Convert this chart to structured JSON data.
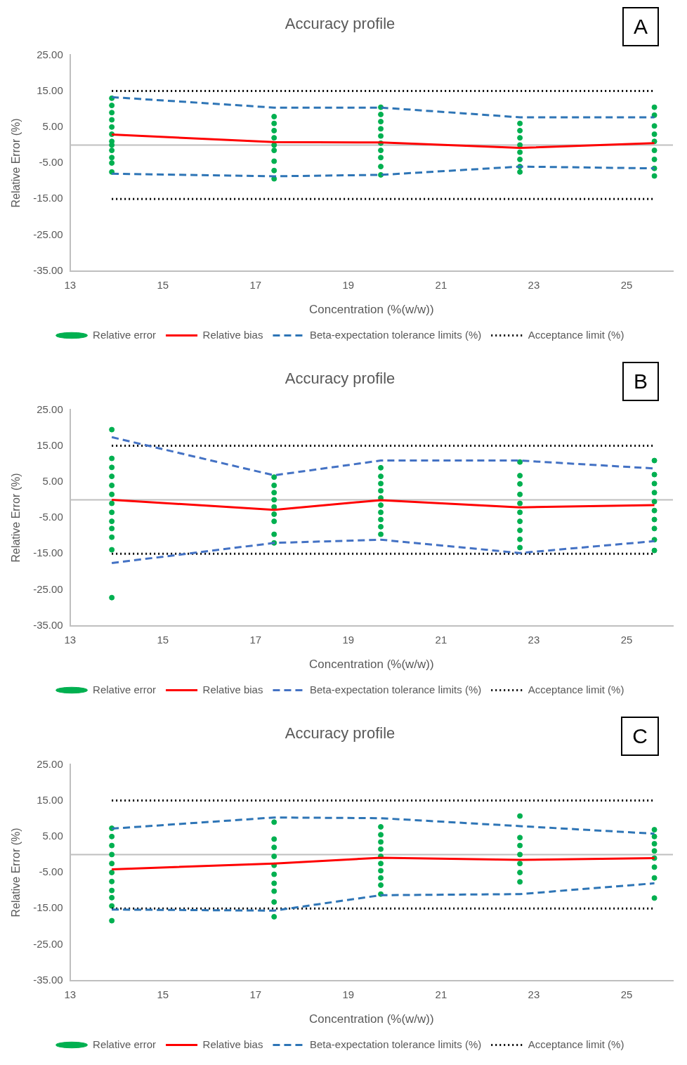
{
  "chart_data": [
    {
      "type": "scatter",
      "title": "Accuracy profile",
      "xlabel": "Concentration (%(w/w))",
      "ylabel": "Relative Error (%)",
      "annotations": [
        "A"
      ],
      "xlim": [
        13,
        26
      ],
      "xticks": [
        13,
        15,
        17,
        19,
        21,
        23,
        25
      ],
      "ylim": [
        -35,
        25
      ],
      "yticks": [
        {
          "value": -35,
          "label": "-35.00"
        },
        {
          "value": -25,
          "label": "-25.00"
        },
        {
          "value": -15,
          "label": "-15.00"
        },
        {
          "value": -5,
          "label": "-5.00"
        },
        {
          "value": 5,
          "label": "5.00"
        },
        {
          "value": 15,
          "label": "15.00"
        },
        {
          "value": 25,
          "label": "25.00"
        }
      ],
      "grid": false,
      "legend": "bottom",
      "ref_lines": [
        {
          "axis": "y",
          "value": 0,
          "color": "#bfbfbf"
        }
      ],
      "series": [
        {
          "name": "Relative error",
          "type": "scatter",
          "marker": "circle",
          "color": "#00b050",
          "x": [
            13.9,
            13.9,
            13.9,
            13.9,
            13.9,
            13.9,
            13.9,
            13.9,
            13.9,
            13.9,
            13.9,
            13.9,
            17.4,
            17.4,
            17.4,
            17.4,
            17.4,
            17.4,
            17.4,
            17.4,
            17.4,
            19.7,
            19.7,
            19.7,
            19.7,
            19.7,
            19.7,
            19.7,
            19.7,
            19.7,
            19.7,
            22.7,
            22.7,
            22.7,
            22.7,
            22.7,
            22.7,
            22.7,
            22.7,
            25.6,
            25.6,
            25.6,
            25.6,
            25.6,
            25.6,
            25.6,
            25.6,
            25.6
          ],
          "values": [
            13,
            11,
            9,
            7,
            5,
            3,
            1,
            0,
            -1.5,
            -3.5,
            -5,
            -7.5,
            7.9,
            6,
            4,
            2,
            0,
            -1.5,
            -4.5,
            -7.1,
            -9.4,
            10.5,
            8.5,
            6.5,
            4.5,
            2.5,
            0.5,
            -1.5,
            -3.5,
            -6,
            -8.3,
            6,
            4,
            2,
            0,
            -2,
            -4,
            -6,
            -7.5,
            10.5,
            8.3,
            5.3,
            3,
            1,
            -1.5,
            -4,
            -6.5,
            -8.6
          ]
        },
        {
          "name": "Relative bias",
          "type": "line",
          "marker": "none",
          "line_style": "solid",
          "color": "#ff0000",
          "x": [
            13.9,
            17.4,
            19.7,
            22.7,
            25.6
          ],
          "values": [
            2.9,
            0.8,
            0.7,
            -0.8,
            0.5
          ]
        },
        {
          "name": "Beta-expectation tolerance limits (%)",
          "type": "line",
          "marker": "none",
          "line_style": "dashed",
          "color": "#2e75b6",
          "x": [
            13.9,
            17.4,
            19.7,
            22.7,
            25.6
          ],
          "values": [
            13.3,
            10.4,
            10.4,
            7.7,
            7.7
          ]
        },
        {
          "type": "line",
          "marker": "none",
          "line_style": "dashed",
          "color": "#2e75b6",
          "x": [
            13.9,
            17.4,
            19.7,
            22.7,
            25.6
          ],
          "values": [
            -8,
            -8.7,
            -8.3,
            -6,
            -6.5
          ]
        },
        {
          "name": "Acceptance limit (%)",
          "type": "line",
          "marker": "none",
          "line_style": "dotted",
          "color": "#000000",
          "x": [
            13.9,
            25.6
          ],
          "values": [
            15,
            15
          ]
        },
        {
          "type": "line",
          "marker": "none",
          "line_style": "dotted",
          "color": "#000000",
          "x": [
            13.9,
            25.6
          ],
          "values": [
            -15,
            -15
          ]
        }
      ]
    },
    {
      "type": "scatter",
      "title": "Accuracy profile",
      "xlabel": "Concentration (%(w/w))",
      "ylabel": "Relative Error (%)",
      "annotations": [
        "B"
      ],
      "xlim": [
        13,
        26
      ],
      "xticks": [
        13,
        15,
        17,
        19,
        21,
        23,
        25
      ],
      "ylim": [
        -35,
        25
      ],
      "yticks": [
        {
          "value": -35,
          "label": "-35.00"
        },
        {
          "value": -25,
          "label": "-25.00"
        },
        {
          "value": -15,
          "label": "-15.00"
        },
        {
          "value": -5,
          "label": "-5.00"
        },
        {
          "value": 5,
          "label": "5.00"
        },
        {
          "value": 15,
          "label": "15.00"
        },
        {
          "value": 25,
          "label": "25.00"
        }
      ],
      "grid": false,
      "legend": "bottom",
      "ref_lines": [
        {
          "axis": "y",
          "value": 0,
          "color": "#bfbfbf"
        }
      ],
      "series": [
        {
          "name": "Relative error",
          "type": "scatter",
          "marker": "circle",
          "color": "#00b050",
          "x": [
            13.9,
            13.9,
            13.9,
            13.9,
            13.9,
            13.9,
            13.9,
            13.9,
            13.9,
            13.9,
            13.9,
            13.9,
            13.9,
            17.4,
            17.4,
            17.4,
            17.4,
            17.4,
            17.4,
            17.4,
            17.4,
            17.4,
            19.7,
            19.7,
            19.7,
            19.7,
            19.7,
            19.7,
            19.7,
            19.7,
            19.7,
            19.7,
            22.7,
            22.7,
            22.7,
            22.7,
            22.7,
            22.7,
            22.7,
            22.7,
            22.7,
            22.7,
            25.6,
            25.6,
            25.6,
            25.6,
            25.6,
            25.6,
            25.6,
            25.6,
            25.6,
            25.6
          ],
          "values": [
            19.5,
            11.5,
            9,
            6.5,
            4,
            1.5,
            -1,
            -3.5,
            -6,
            -8,
            -10.4,
            -13.9,
            -27.2,
            6.3,
            4,
            2,
            0,
            -2,
            -4,
            -6,
            -9.6,
            -12,
            8.9,
            6.5,
            4.5,
            2.5,
            0.5,
            -1.5,
            -3.5,
            -5.5,
            -7.5,
            -9.6,
            10.5,
            6.7,
            4.4,
            1.5,
            -1,
            -3.5,
            -6,
            -8.5,
            -11,
            -13.3,
            10.9,
            7,
            4.5,
            2,
            -0.5,
            -3,
            -5.5,
            -8,
            -11.1,
            -14.1
          ]
        },
        {
          "name": "Relative bias",
          "type": "line",
          "marker": "none",
          "line_style": "solid",
          "color": "#ff0000",
          "x": [
            13.9,
            17.4,
            19.7,
            22.7,
            25.6
          ],
          "values": [
            0,
            -2.8,
            -0.1,
            -2.1,
            -1.5
          ]
        },
        {
          "name": "Beta-expectation tolerance limits (%)",
          "type": "line",
          "marker": "none",
          "line_style": "dashed",
          "color": "#4472c4",
          "x": [
            13.9,
            17.4,
            19.7,
            22.7,
            25.6
          ],
          "values": [
            17.4,
            6.8,
            10.9,
            10.9,
            8.7
          ]
        },
        {
          "type": "line",
          "marker": "none",
          "line_style": "dashed",
          "color": "#4472c4",
          "x": [
            13.9,
            17.4,
            19.7,
            22.7,
            25.6
          ],
          "values": [
            -17.6,
            -12,
            -11.1,
            -14.8,
            -11.5
          ]
        },
        {
          "name": "Acceptance limit (%)",
          "type": "line",
          "marker": "none",
          "line_style": "dotted",
          "color": "#000000",
          "x": [
            13.9,
            25.6
          ],
          "values": [
            15,
            15
          ]
        },
        {
          "type": "line",
          "marker": "none",
          "line_style": "dotted",
          "color": "#000000",
          "x": [
            13.9,
            25.6
          ],
          "values": [
            -15,
            -15
          ]
        }
      ]
    },
    {
      "type": "scatter",
      "title": "Accuracy profile",
      "xlabel": "Concentration (%(w/w))",
      "ylabel": "Relative Error (%)",
      "annotations": [
        "C"
      ],
      "xlim": [
        13,
        26
      ],
      "xticks": [
        13,
        15,
        17,
        19,
        21,
        23,
        25
      ],
      "ylim": [
        -35,
        25
      ],
      "yticks": [
        {
          "value": -35,
          "label": "-35.00"
        },
        {
          "value": -25,
          "label": "-25.00"
        },
        {
          "value": -15,
          "label": "-15.00"
        },
        {
          "value": -5,
          "label": "-5.00"
        },
        {
          "value": 5,
          "label": "5.00"
        },
        {
          "value": 15,
          "label": "15.00"
        },
        {
          "value": 25,
          "label": "25.00"
        }
      ],
      "grid": false,
      "legend": "bottom",
      "ref_lines": [
        {
          "axis": "y",
          "value": 0,
          "color": "#bfbfbf"
        }
      ],
      "series": [
        {
          "name": "Relative error",
          "type": "scatter",
          "marker": "circle",
          "color": "#00b050",
          "x": [
            13.9,
            13.9,
            13.9,
            13.9,
            13.9,
            13.9,
            13.9,
            13.9,
            13.9,
            13.9,
            13.9,
            17.4,
            17.4,
            17.4,
            17.4,
            17.4,
            17.4,
            17.4,
            17.4,
            17.4,
            17.4,
            19.7,
            19.7,
            19.7,
            19.7,
            19.7,
            19.7,
            19.7,
            19.7,
            19.7,
            19.7,
            22.7,
            22.7,
            22.7,
            22.7,
            22.7,
            22.7,
            22.7,
            25.6,
            25.6,
            25.6,
            25.6,
            25.6,
            25.6,
            25.6,
            25.6
          ],
          "values": [
            7.3,
            5,
            2.5,
            0,
            -2.5,
            -5,
            -7.5,
            -10,
            -12,
            -14.3,
            -18.4,
            9,
            4.3,
            2,
            -0.5,
            -3,
            -5.5,
            -8,
            -10.2,
            -13.2,
            -17.3,
            7.7,
            5.5,
            3.5,
            1.5,
            -0.5,
            -2.5,
            -4.5,
            -6.5,
            -8.5,
            -11,
            10.7,
            4.7,
            2.5,
            0,
            -2.5,
            -5,
            -7.6,
            6.9,
            5,
            3,
            1,
            -1,
            -3.5,
            -6.5,
            -12.1
          ]
        },
        {
          "name": "Relative bias",
          "type": "line",
          "marker": "none",
          "line_style": "solid",
          "color": "#ff0000",
          "x": [
            13.9,
            17.4,
            19.7,
            22.7,
            25.6
          ],
          "values": [
            -4.1,
            -2.5,
            -0.9,
            -1.5,
            -1
          ]
        },
        {
          "name": "Beta-expectation tolerance limits (%)",
          "type": "line",
          "marker": "none",
          "line_style": "dashed",
          "color": "#2e75b6",
          "x": [
            13.9,
            17.4,
            19.7,
            22.7,
            25.6
          ],
          "values": [
            7.2,
            10.3,
            10.1,
            7.9,
            5.8
          ]
        },
        {
          "type": "line",
          "marker": "none",
          "line_style": "dashed",
          "color": "#2e75b6",
          "x": [
            13.9,
            17.4,
            19.7,
            22.7,
            25.6
          ],
          "values": [
            -15.3,
            -15.6,
            -11.3,
            -11,
            -8
          ]
        },
        {
          "name": "Acceptance limit (%)",
          "type": "line",
          "marker": "none",
          "line_style": "dotted",
          "color": "#000000",
          "x": [
            13.9,
            25.6
          ],
          "values": [
            15,
            15
          ]
        },
        {
          "type": "line",
          "marker": "none",
          "line_style": "dotted",
          "color": "#000000",
          "x": [
            13.9,
            25.6
          ],
          "values": [
            -15,
            -15
          ]
        }
      ]
    }
  ]
}
